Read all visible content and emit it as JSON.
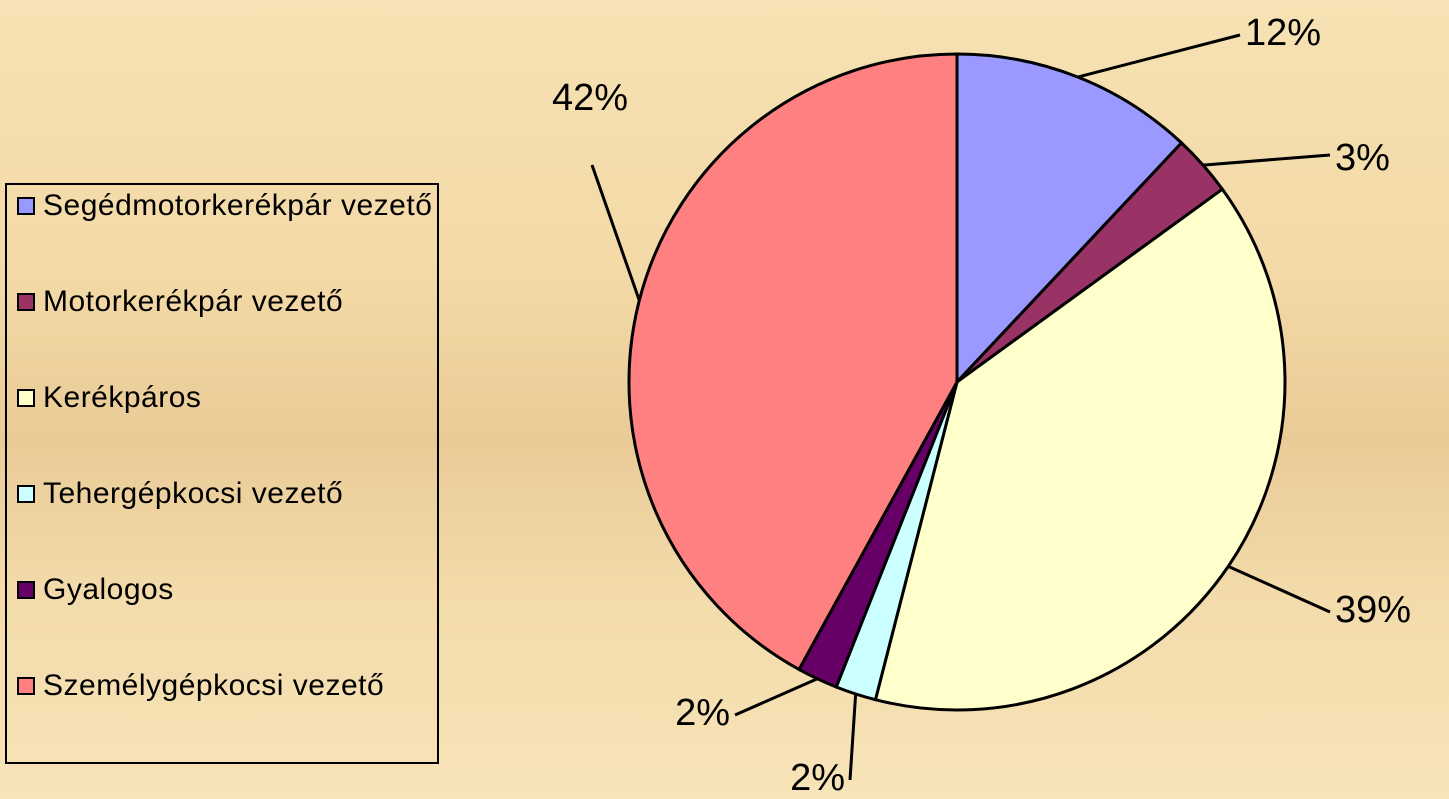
{
  "chart_data": {
    "type": "pie",
    "categories": [
      "Segédmotorkerékpár vezető",
      "Motorkerékpár vezető",
      "Kerékpáros",
      "Tehergépkocsi vezető",
      "Gyalogos",
      "Személygépkocsi vezető"
    ],
    "values": [
      12,
      3,
      39,
      2,
      2,
      42
    ],
    "value_labels": [
      "12%",
      "3%",
      "39%",
      "2%",
      "2%",
      "42%"
    ],
    "colors": [
      "#9999ff",
      "#993366",
      "#ffffcc",
      "#ccffff",
      "#660066",
      "#ff8080"
    ]
  }
}
